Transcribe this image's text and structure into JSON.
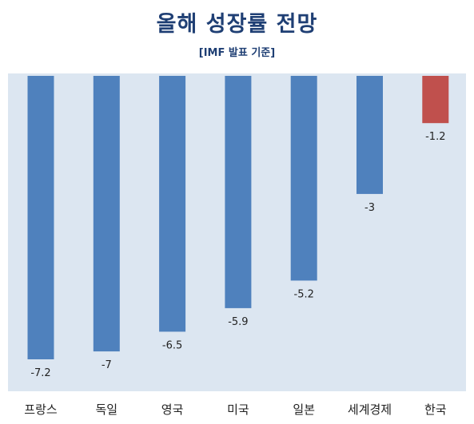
{
  "title": "올해 성장률 전망",
  "subtitle": "[IMF 발표 기준]",
  "colors": {
    "bar_default": "#4f81bd",
    "bar_highlight": "#c0504d",
    "plot_background": "#dce6f1",
    "title": "#1f3f74"
  },
  "chart_data": {
    "type": "bar",
    "title": "올해 성장률 전망",
    "subtitle": "[IMF 발표 기준]",
    "categories": [
      "프랑스",
      "독일",
      "영국",
      "미국",
      "일본",
      "세계경제",
      "한국"
    ],
    "values": [
      -7.2,
      -7,
      -6.5,
      -5.9,
      -5.2,
      -3,
      -1.2
    ],
    "value_labels": [
      "-7.2",
      "-7",
      "-6.5",
      "-5.9",
      "-5.2",
      "-3",
      "-1.2"
    ],
    "highlight_index": 6,
    "ylim": [
      -8,
      0
    ],
    "grid": false,
    "legend": "none",
    "xlabel": "",
    "ylabel": ""
  }
}
